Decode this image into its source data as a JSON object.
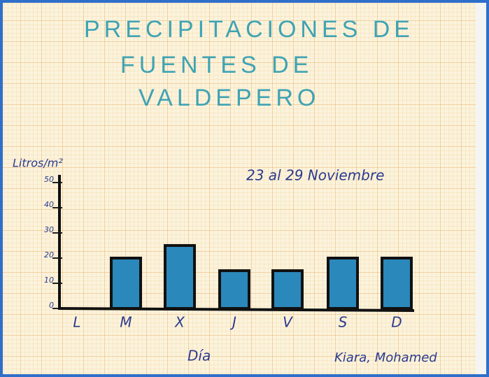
{
  "chart_data": {
    "type": "bar",
    "title_lines": [
      "PRECIPITACIONES DE",
      "FUENTES DE",
      "VALDEPERO"
    ],
    "subtitle": "23 al 29 Noviembre",
    "y_label": "Litros/m²",
    "x_label": "Día",
    "author": "Kiara, Mohamed",
    "categories": [
      "L",
      "M",
      "X",
      "J",
      "V",
      "S",
      "D"
    ],
    "values": [
      0,
      20,
      25,
      15,
      15,
      20,
      20
    ],
    "color": "#2a88bb",
    "ylim": [
      0,
      50
    ],
    "yticks": [
      0,
      10,
      20,
      30,
      40,
      50
    ],
    "grid": false
  }
}
